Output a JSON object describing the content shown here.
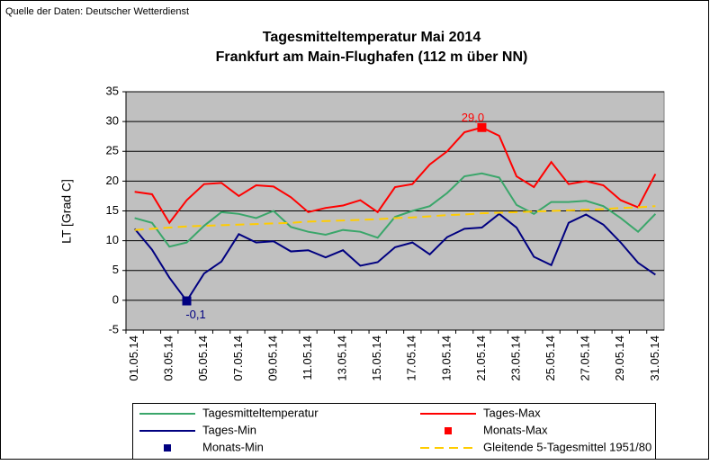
{
  "chart_data": {
    "type": "line",
    "source": "Quelle der Daten: Deutscher Wetterdienst",
    "title": "Tagesmitteltemperatur Mai 2014",
    "subtitle": "Frankfurt am Main-Flughafen (112 m über NN)",
    "y_label": "LT [Grad C]",
    "categories": [
      "01.05.14",
      null,
      "03.05.14",
      null,
      "05.05.14",
      null,
      "07.05.14",
      null,
      "09.05.14",
      null,
      "11.05.14",
      null,
      "13.05.14",
      null,
      "15.05.14",
      null,
      "17.05.14",
      null,
      "19.05.14",
      null,
      "21.05.14",
      null,
      "23.05.14",
      null,
      "25.05.14",
      null,
      "27.05.14",
      null,
      "29.05.14",
      null,
      "31.05.14"
    ],
    "ylim": [
      -5,
      35
    ],
    "yticks": [
      -5,
      0,
      5,
      10,
      15,
      20,
      25,
      30,
      35
    ],
    "grid": true,
    "series": [
      {
        "name": "Tagesmitteltemperatur",
        "color": "#3aa66a",
        "values": [
          13.8,
          13,
          9,
          9.7,
          12.5,
          14.8,
          14.5,
          13.8,
          15,
          12.3,
          11.5,
          11,
          11.8,
          11.5,
          10.5,
          14,
          15,
          15.8,
          18,
          20.8,
          21.3,
          20.6,
          16,
          14.5,
          16.5,
          16.5,
          16.7,
          15.8,
          13.8,
          11.5,
          14.5
        ]
      },
      {
        "name": "Tages-Max",
        "color": "#ff0000",
        "values": [
          18.2,
          17.8,
          13,
          16.8,
          19.5,
          19.7,
          17.5,
          19.3,
          19.1,
          17.3,
          14.8,
          15.5,
          15.9,
          16.8,
          14.8,
          19,
          19.5,
          22.8,
          25,
          28.2,
          29,
          27.6,
          20.8,
          19,
          23.2,
          19.5,
          20,
          19.3,
          16.8,
          15.6,
          21.2
        ]
      },
      {
        "name": "Tages-Min",
        "color": "#000080",
        "values": [
          12,
          8.5,
          3.8,
          -0.1,
          4.5,
          6.5,
          11.1,
          9.7,
          9.9,
          8.2,
          8.4,
          7.2,
          8.4,
          5.8,
          6.4,
          8.9,
          9.7,
          7.7,
          10.6,
          12,
          12.2,
          14.5,
          12.2,
          7.3,
          5.9,
          13,
          14.4,
          12.7,
          9.7,
          6.3,
          4.3
        ]
      },
      {
        "name": "Monats-Max",
        "color": "#ff0000",
        "marker": "square",
        "values": [
          null,
          null,
          null,
          null,
          null,
          null,
          null,
          null,
          null,
          null,
          null,
          null,
          null,
          null,
          null,
          null,
          null,
          null,
          null,
          null,
          29,
          null,
          null,
          null,
          null,
          null,
          null,
          null,
          null,
          null,
          null
        ],
        "value_labels": [
          null,
          null,
          null,
          null,
          null,
          null,
          null,
          null,
          null,
          null,
          null,
          null,
          null,
          null,
          null,
          null,
          null,
          null,
          null,
          null,
          "29,0",
          null,
          null,
          null,
          null,
          null,
          null,
          null,
          null,
          null,
          null
        ]
      },
      {
        "name": "Monats-Min",
        "color": "#000080",
        "marker": "square",
        "values": [
          null,
          null,
          null,
          -0.1,
          null,
          null,
          null,
          null,
          null,
          null,
          null,
          null,
          null,
          null,
          null,
          null,
          null,
          null,
          null,
          null,
          null,
          null,
          null,
          null,
          null,
          null,
          null,
          null,
          null,
          null,
          null
        ],
        "value_labels": [
          null,
          null,
          null,
          "-0,1",
          null,
          null,
          null,
          null,
          null,
          null,
          null,
          null,
          null,
          null,
          null,
          null,
          null,
          null,
          null,
          null,
          null,
          null,
          null,
          null,
          null,
          null,
          null,
          null,
          null,
          null,
          null
        ]
      },
      {
        "name": "Gleitende 5-Tagesmittel 1951/80",
        "color": "#ffcc00",
        "dash": true,
        "values": [
          11.8,
          12.0,
          12.2,
          12.4,
          12.5,
          12.6,
          12.7,
          12.8,
          12.9,
          13.0,
          13.2,
          13.3,
          13.4,
          13.5,
          13.6,
          13.8,
          13.9,
          14.1,
          14.3,
          14.4,
          14.6,
          14.7,
          14.8,
          14.9,
          15.0,
          15.1,
          15.2,
          15.3,
          15.5,
          15.6,
          15.8
        ]
      }
    ]
  }
}
